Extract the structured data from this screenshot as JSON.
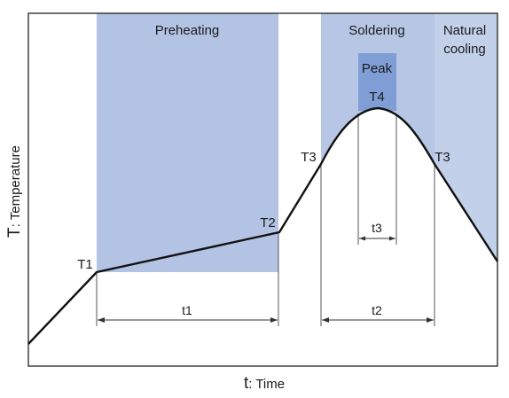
{
  "zones": {
    "preheating": "Preheating",
    "soldering": "Soldering",
    "cooling_line1": "Natural",
    "cooling_line2": "cooling",
    "peak": "Peak"
  },
  "points": {
    "t1": "T1",
    "t2": "T2",
    "t3_left": "T3",
    "t4": "T4",
    "t3_right": "T3"
  },
  "durations": {
    "t1": "t1",
    "t2": "t2",
    "t3": "t3"
  },
  "axes": {
    "x_prefix": "t",
    "x_label": ": Time",
    "y_prefix": "T",
    "y_label": ": Temperature"
  },
  "colors": {
    "zone_fill": "#b6c6e4",
    "peak_fill": "#7f9ed5",
    "curve": "#111111"
  }
}
